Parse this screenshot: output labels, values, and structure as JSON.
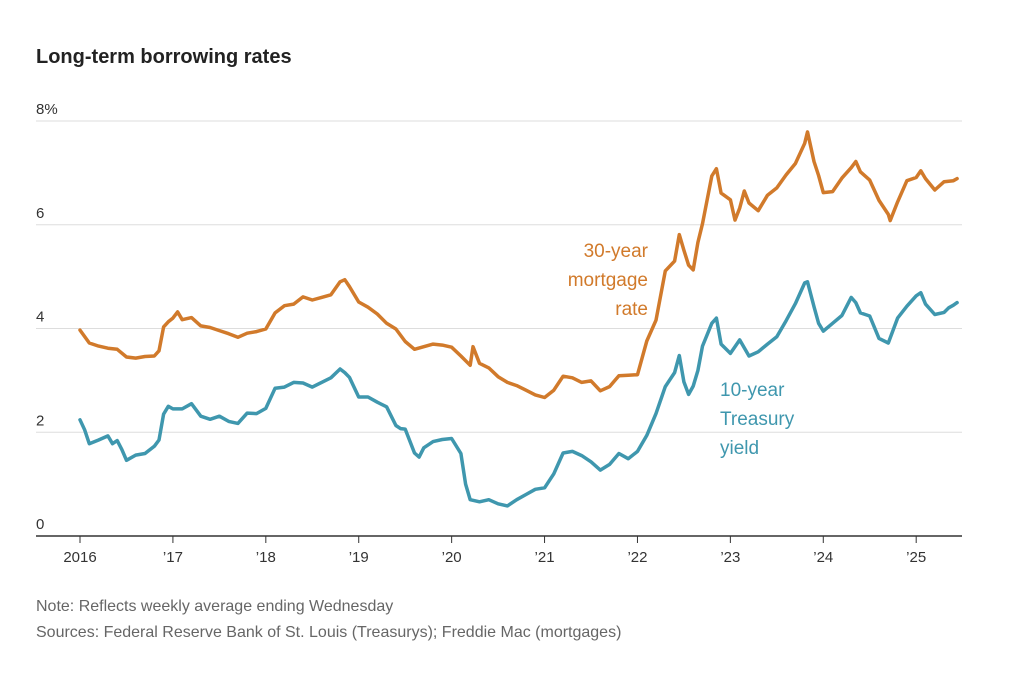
{
  "title": "Long-term borrowing rates",
  "note": "Note: Reflects weekly average ending Wednesday",
  "sources": "Sources: Federal Reserve Bank of St. Louis (Treasurys); Freddie Mac (mortgages)",
  "colors": {
    "mortgage": "#d17a2b",
    "treasury": "#3f97ae",
    "grid": "#dddddd",
    "axis": "#333333"
  },
  "chart_data": {
    "type": "line",
    "title": "Long-term borrowing rates",
    "xlabel": "",
    "ylabel": "",
    "xlim": [
      2016.0,
      2025.45
    ],
    "ylim": [
      0,
      8
    ],
    "grid": true,
    "y_ticks": [
      0,
      2,
      4,
      6,
      8
    ],
    "y_tick_labels": [
      "0",
      "2",
      "4",
      "6",
      "8%"
    ],
    "x_ticks": [
      2016,
      2017,
      2018,
      2019,
      2020,
      2021,
      2022,
      2023,
      2024,
      2025
    ],
    "x_tick_labels": [
      "2016",
      "’17",
      "’18",
      "’19",
      "’20",
      "’21",
      "’22",
      "’23",
      "’24",
      "’25"
    ],
    "series": [
      {
        "name": "30-year mortgage rate",
        "label_lines": [
          "30-year",
          "mortgage",
          "rate"
        ],
        "color": "#d17a2b",
        "points": [
          [
            2016.0,
            3.97
          ],
          [
            2016.1,
            3.72
          ],
          [
            2016.2,
            3.66
          ],
          [
            2016.3,
            3.62
          ],
          [
            2016.4,
            3.6
          ],
          [
            2016.5,
            3.45
          ],
          [
            2016.6,
            3.43
          ],
          [
            2016.7,
            3.46
          ],
          [
            2016.8,
            3.47
          ],
          [
            2016.85,
            3.57
          ],
          [
            2016.9,
            4.03
          ],
          [
            2016.95,
            4.13
          ],
          [
            2017.0,
            4.2
          ],
          [
            2017.05,
            4.32
          ],
          [
            2017.1,
            4.17
          ],
          [
            2017.2,
            4.21
          ],
          [
            2017.3,
            4.05
          ],
          [
            2017.4,
            4.02
          ],
          [
            2017.5,
            3.96
          ],
          [
            2017.6,
            3.9
          ],
          [
            2017.7,
            3.83
          ],
          [
            2017.8,
            3.91
          ],
          [
            2017.9,
            3.94
          ],
          [
            2018.0,
            3.99
          ],
          [
            2018.1,
            4.3
          ],
          [
            2018.2,
            4.44
          ],
          [
            2018.3,
            4.47
          ],
          [
            2018.4,
            4.61
          ],
          [
            2018.5,
            4.55
          ],
          [
            2018.6,
            4.6
          ],
          [
            2018.7,
            4.65
          ],
          [
            2018.8,
            4.9
          ],
          [
            2018.85,
            4.94
          ],
          [
            2018.9,
            4.81
          ],
          [
            2019.0,
            4.51
          ],
          [
            2019.1,
            4.41
          ],
          [
            2019.2,
            4.28
          ],
          [
            2019.3,
            4.1
          ],
          [
            2019.4,
            3.99
          ],
          [
            2019.5,
            3.75
          ],
          [
            2019.6,
            3.6
          ],
          [
            2019.7,
            3.65
          ],
          [
            2019.8,
            3.7
          ],
          [
            2019.9,
            3.68
          ],
          [
            2020.0,
            3.64
          ],
          [
            2020.1,
            3.47
          ],
          [
            2020.2,
            3.29
          ],
          [
            2020.23,
            3.65
          ],
          [
            2020.3,
            3.33
          ],
          [
            2020.4,
            3.24
          ],
          [
            2020.5,
            3.07
          ],
          [
            2020.6,
            2.96
          ],
          [
            2020.7,
            2.9
          ],
          [
            2020.8,
            2.81
          ],
          [
            2020.9,
            2.72
          ],
          [
            2021.0,
            2.67
          ],
          [
            2021.1,
            2.81
          ],
          [
            2021.2,
            3.08
          ],
          [
            2021.3,
            3.05
          ],
          [
            2021.4,
            2.96
          ],
          [
            2021.5,
            2.99
          ],
          [
            2021.6,
            2.8
          ],
          [
            2021.7,
            2.88
          ],
          [
            2021.8,
            3.09
          ],
          [
            2021.9,
            3.1
          ],
          [
            2022.0,
            3.11
          ],
          [
            2022.1,
            3.76
          ],
          [
            2022.2,
            4.16
          ],
          [
            2022.3,
            5.11
          ],
          [
            2022.4,
            5.3
          ],
          [
            2022.45,
            5.81
          ],
          [
            2022.5,
            5.51
          ],
          [
            2022.55,
            5.22
          ],
          [
            2022.6,
            5.13
          ],
          [
            2022.65,
            5.66
          ],
          [
            2022.7,
            6.02
          ],
          [
            2022.8,
            6.94
          ],
          [
            2022.85,
            7.08
          ],
          [
            2022.9,
            6.61
          ],
          [
            2023.0,
            6.48
          ],
          [
            2023.05,
            6.09
          ],
          [
            2023.1,
            6.32
          ],
          [
            2023.15,
            6.65
          ],
          [
            2023.2,
            6.42
          ],
          [
            2023.3,
            6.27
          ],
          [
            2023.4,
            6.57
          ],
          [
            2023.5,
            6.71
          ],
          [
            2023.6,
            6.96
          ],
          [
            2023.7,
            7.18
          ],
          [
            2023.8,
            7.57
          ],
          [
            2023.83,
            7.79
          ],
          [
            2023.9,
            7.22
          ],
          [
            2023.95,
            6.95
          ],
          [
            2024.0,
            6.62
          ],
          [
            2024.1,
            6.64
          ],
          [
            2024.2,
            6.9
          ],
          [
            2024.3,
            7.1
          ],
          [
            2024.35,
            7.22
          ],
          [
            2024.4,
            7.02
          ],
          [
            2024.5,
            6.86
          ],
          [
            2024.6,
            6.47
          ],
          [
            2024.7,
            6.2
          ],
          [
            2024.72,
            6.08
          ],
          [
            2024.8,
            6.44
          ],
          [
            2024.9,
            6.85
          ],
          [
            2025.0,
            6.91
          ],
          [
            2025.05,
            7.04
          ],
          [
            2025.1,
            6.89
          ],
          [
            2025.2,
            6.67
          ],
          [
            2025.3,
            6.83
          ],
          [
            2025.4,
            6.85
          ],
          [
            2025.44,
            6.89
          ]
        ]
      },
      {
        "name": "10-year Treasury yield",
        "label_lines": [
          "10-year",
          "Treasury",
          "yield"
        ],
        "color": "#3f97ae",
        "points": [
          [
            2016.0,
            2.24
          ],
          [
            2016.05,
            2.05
          ],
          [
            2016.1,
            1.78
          ],
          [
            2016.2,
            1.85
          ],
          [
            2016.3,
            1.93
          ],
          [
            2016.35,
            1.78
          ],
          [
            2016.4,
            1.84
          ],
          [
            2016.45,
            1.67
          ],
          [
            2016.5,
            1.46
          ],
          [
            2016.6,
            1.56
          ],
          [
            2016.7,
            1.59
          ],
          [
            2016.8,
            1.73
          ],
          [
            2016.85,
            1.85
          ],
          [
            2016.9,
            2.35
          ],
          [
            2016.95,
            2.5
          ],
          [
            2017.0,
            2.45
          ],
          [
            2017.1,
            2.45
          ],
          [
            2017.2,
            2.55
          ],
          [
            2017.3,
            2.31
          ],
          [
            2017.4,
            2.25
          ],
          [
            2017.5,
            2.31
          ],
          [
            2017.6,
            2.21
          ],
          [
            2017.7,
            2.17
          ],
          [
            2017.8,
            2.37
          ],
          [
            2017.9,
            2.36
          ],
          [
            2018.0,
            2.46
          ],
          [
            2018.1,
            2.85
          ],
          [
            2018.2,
            2.87
          ],
          [
            2018.3,
            2.96
          ],
          [
            2018.4,
            2.95
          ],
          [
            2018.5,
            2.87
          ],
          [
            2018.6,
            2.96
          ],
          [
            2018.7,
            3.05
          ],
          [
            2018.8,
            3.22
          ],
          [
            2018.85,
            3.15
          ],
          [
            2018.9,
            3.06
          ],
          [
            2019.0,
            2.68
          ],
          [
            2019.1,
            2.68
          ],
          [
            2019.2,
            2.58
          ],
          [
            2019.3,
            2.49
          ],
          [
            2019.4,
            2.13
          ],
          [
            2019.45,
            2.07
          ],
          [
            2019.5,
            2.06
          ],
          [
            2019.6,
            1.6
          ],
          [
            2019.65,
            1.52
          ],
          [
            2019.7,
            1.7
          ],
          [
            2019.8,
            1.82
          ],
          [
            2019.9,
            1.86
          ],
          [
            2020.0,
            1.88
          ],
          [
            2020.1,
            1.59
          ],
          [
            2020.15,
            1.0
          ],
          [
            2020.2,
            0.7
          ],
          [
            2020.3,
            0.66
          ],
          [
            2020.4,
            0.7
          ],
          [
            2020.5,
            0.62
          ],
          [
            2020.6,
            0.58
          ],
          [
            2020.7,
            0.7
          ],
          [
            2020.8,
            0.8
          ],
          [
            2020.9,
            0.9
          ],
          [
            2021.0,
            0.93
          ],
          [
            2021.1,
            1.2
          ],
          [
            2021.2,
            1.6
          ],
          [
            2021.3,
            1.63
          ],
          [
            2021.4,
            1.55
          ],
          [
            2021.5,
            1.43
          ],
          [
            2021.6,
            1.27
          ],
          [
            2021.7,
            1.38
          ],
          [
            2021.8,
            1.59
          ],
          [
            2021.9,
            1.49
          ],
          [
            2022.0,
            1.63
          ],
          [
            2022.1,
            1.94
          ],
          [
            2022.2,
            2.36
          ],
          [
            2022.3,
            2.88
          ],
          [
            2022.4,
            3.15
          ],
          [
            2022.45,
            3.48
          ],
          [
            2022.5,
            2.97
          ],
          [
            2022.55,
            2.73
          ],
          [
            2022.6,
            2.89
          ],
          [
            2022.65,
            3.19
          ],
          [
            2022.7,
            3.66
          ],
          [
            2022.8,
            4.1
          ],
          [
            2022.85,
            4.2
          ],
          [
            2022.9,
            3.7
          ],
          [
            2023.0,
            3.52
          ],
          [
            2023.1,
            3.78
          ],
          [
            2023.2,
            3.47
          ],
          [
            2023.3,
            3.55
          ],
          [
            2023.4,
            3.7
          ],
          [
            2023.5,
            3.84
          ],
          [
            2023.6,
            4.15
          ],
          [
            2023.7,
            4.48
          ],
          [
            2023.8,
            4.88
          ],
          [
            2023.83,
            4.9
          ],
          [
            2023.9,
            4.42
          ],
          [
            2023.95,
            4.1
          ],
          [
            2024.0,
            3.95
          ],
          [
            2024.1,
            4.1
          ],
          [
            2024.2,
            4.25
          ],
          [
            2024.3,
            4.6
          ],
          [
            2024.35,
            4.5
          ],
          [
            2024.4,
            4.3
          ],
          [
            2024.5,
            4.24
          ],
          [
            2024.6,
            3.81
          ],
          [
            2024.7,
            3.72
          ],
          [
            2024.8,
            4.2
          ],
          [
            2024.9,
            4.43
          ],
          [
            2025.0,
            4.63
          ],
          [
            2025.05,
            4.69
          ],
          [
            2025.1,
            4.47
          ],
          [
            2025.2,
            4.27
          ],
          [
            2025.3,
            4.31
          ],
          [
            2025.35,
            4.4
          ],
          [
            2025.4,
            4.45
          ],
          [
            2025.44,
            4.5
          ]
        ]
      }
    ]
  }
}
